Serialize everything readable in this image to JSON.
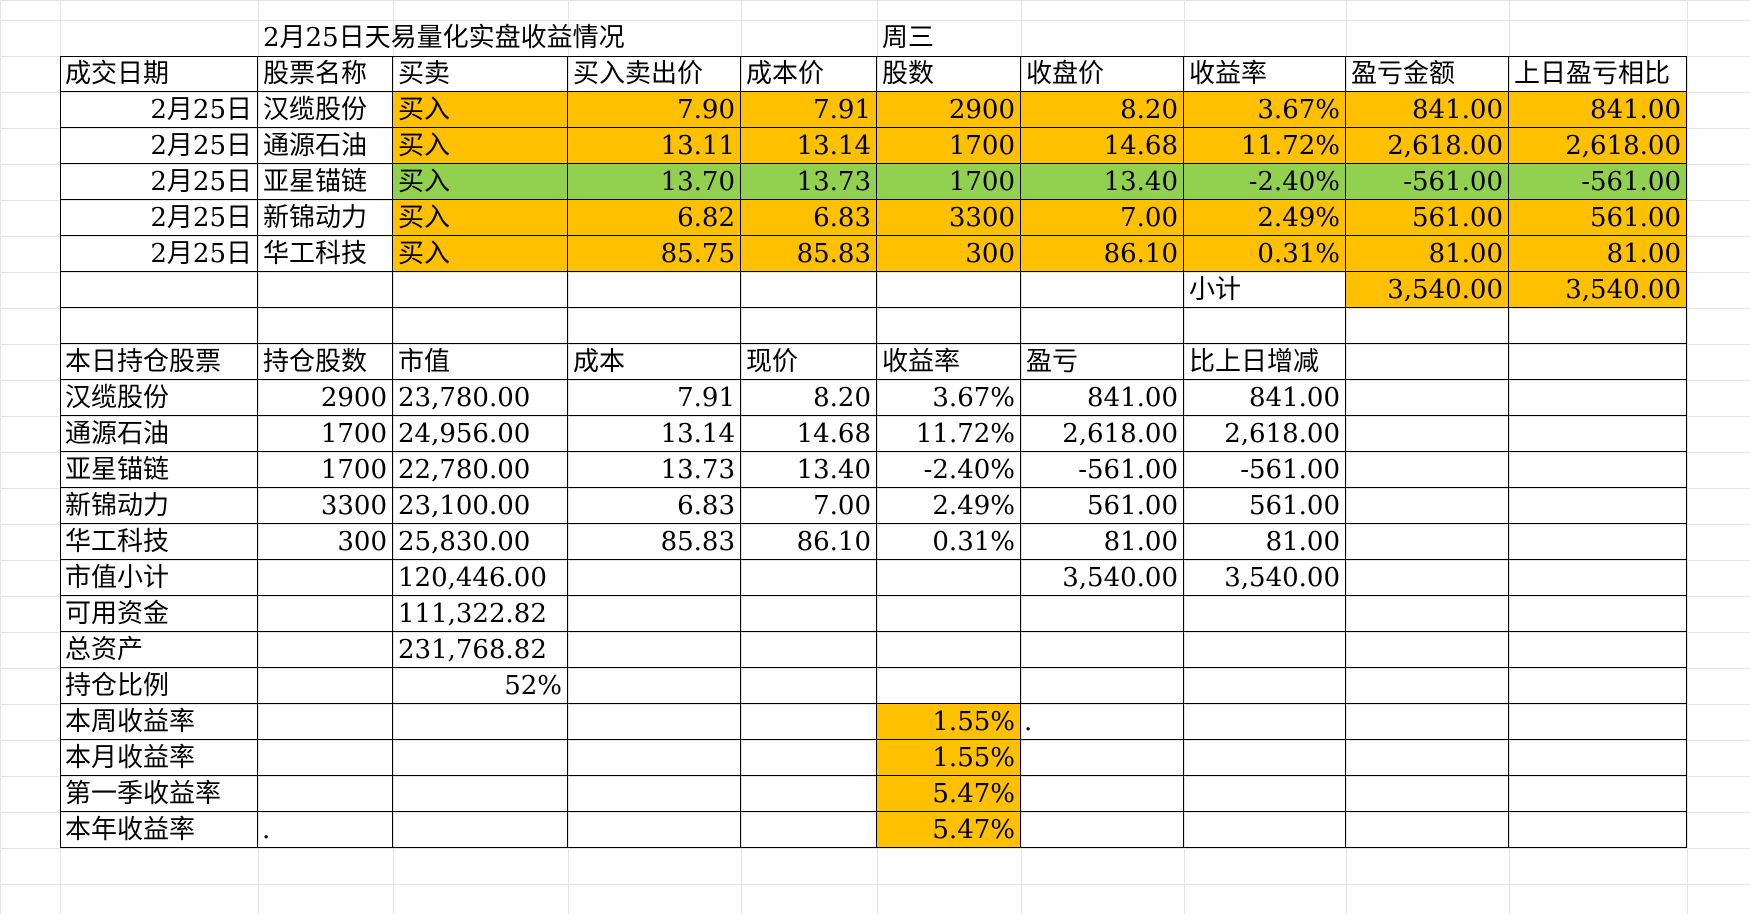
{
  "title": "2月25日天易量化实盘收益情况",
  "weekday": "周三",
  "trade_headers": [
    "成交日期",
    "股票名称",
    "买卖",
    "买入卖出价",
    "成本价",
    "股数",
    "收盘价",
    "收益率",
    "盈亏金额",
    "上日盈亏相比"
  ],
  "trades": [
    {
      "date": "2月25日",
      "name": "汉缆股份",
      "side": "买入",
      "price": "7.90",
      "cost": "7.91",
      "shares": "2900",
      "close": "8.20",
      "ret": "3.67%",
      "pnl": "841.00",
      "vs_prev": "841.00",
      "color": "#ffc000"
    },
    {
      "date": "2月25日",
      "name": "通源石油",
      "side": "买入",
      "price": "13.11",
      "cost": "13.14",
      "shares": "1700",
      "close": "14.68",
      "ret": "11.72%",
      "pnl": "2,618.00",
      "vs_prev": "2,618.00",
      "color": "#ffc000"
    },
    {
      "date": "2月25日",
      "name": "亚星锚链",
      "side": "买入",
      "price": "13.70",
      "cost": "13.73",
      "shares": "1700",
      "close": "13.40",
      "ret": "-2.40%",
      "pnl": "-561.00",
      "vs_prev": "-561.00",
      "color": "#92d050"
    },
    {
      "date": "2月25日",
      "name": "新锦动力",
      "side": "买入",
      "price": "6.82",
      "cost": "6.83",
      "shares": "3300",
      "close": "7.00",
      "ret": "2.49%",
      "pnl": "561.00",
      "vs_prev": "561.00",
      "color": "#ffc000"
    },
    {
      "date": "2月25日",
      "name": "华工科技",
      "side": "买入",
      "price": "85.75",
      "cost": "85.83",
      "shares": "300",
      "close": "86.10",
      "ret": "0.31%",
      "pnl": "81.00",
      "vs_prev": "81.00",
      "color": "#ffc000"
    }
  ],
  "subtotal": {
    "label": "小计",
    "pnl": "3,540.00",
    "vs_prev": "3,540.00"
  },
  "hold_headers": [
    "本日持仓股票",
    "持仓股数",
    "市值",
    "成本",
    "现价",
    "收益率",
    "盈亏",
    "比上日增减"
  ],
  "holdings": [
    {
      "name": "汉缆股份",
      "shares": "2900",
      "value": "23,780.00",
      "cost": "7.91",
      "price": "8.20",
      "ret": "3.67%",
      "pnl": "841.00",
      "change": "841.00"
    },
    {
      "name": "通源石油",
      "shares": "1700",
      "value": "24,956.00",
      "cost": "13.14",
      "price": "14.68",
      "ret": "11.72%",
      "pnl": "2,618.00",
      "change": "2,618.00"
    },
    {
      "name": "亚星锚链",
      "shares": "1700",
      "value": "22,780.00",
      "cost": "13.73",
      "price": "13.40",
      "ret": "-2.40%",
      "pnl": "-561.00",
      "change": "-561.00"
    },
    {
      "name": "新锦动力",
      "shares": "3300",
      "value": "23,100.00",
      "cost": "6.83",
      "price": "7.00",
      "ret": "2.49%",
      "pnl": "561.00",
      "change": "561.00"
    },
    {
      "name": "华工科技",
      "shares": "300",
      "value": "25,830.00",
      "cost": "85.83",
      "price": "86.10",
      "ret": "0.31%",
      "pnl": "81.00",
      "change": "81.00"
    }
  ],
  "summary": {
    "mv_label": "市值小计",
    "mv": "120,446.00",
    "mv_pnl": "3,540.00",
    "mv_change": "3,540.00",
    "cash_label": "可用资金",
    "cash": "111,322.82",
    "total_label": "总资产",
    "total": "231,768.82",
    "ratio_label": "持仓比例",
    "ratio": "52%"
  },
  "returns": [
    {
      "label": "本周收益率",
      "value": "1.55%",
      "note": "."
    },
    {
      "label": "本月收益率",
      "value": "1.55%",
      "note": ""
    },
    {
      "label": "第一季收益率",
      "value": "5.47%",
      "note": ""
    },
    {
      "label": "本年收益率",
      "value": "5.47%",
      "note": "."
    }
  ],
  "highlight_color": "#ffc000",
  "loss_color": "#92d050"
}
